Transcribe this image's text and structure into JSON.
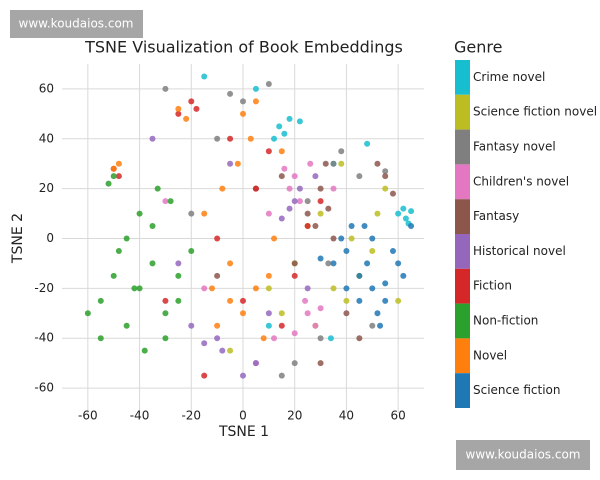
{
  "chart_data": {
    "type": "scatter",
    "title": "TSNE Visualization of Book Embeddings",
    "x_label": "TSNE 1",
    "y_label": "TSNE 2",
    "legend_title": "Genre",
    "xlim": [
      -70,
      70
    ],
    "ylim": [
      -70,
      70
    ],
    "xticks": [
      -60,
      -40,
      -20,
      0,
      20,
      40,
      60
    ],
    "yticks": [
      -60,
      -40,
      -20,
      0,
      20,
      40,
      60
    ],
    "grid": true,
    "legend": "right",
    "series": [
      {
        "name": "Crime novel",
        "color": "#17becf",
        "x": [
          14,
          12,
          18,
          16,
          62,
          63,
          60,
          65,
          10,
          34,
          48,
          -15,
          22,
          35,
          5,
          64
        ],
        "values": [
          45,
          40,
          48,
          42,
          12,
          8,
          10,
          11,
          -35,
          -40,
          38,
          65,
          47,
          30,
          60,
          6
        ]
      },
      {
        "name": "Science fiction novel",
        "color": "#bcbd22",
        "x": [
          20,
          35,
          40,
          45,
          25,
          50,
          30,
          55,
          15,
          -5,
          10,
          38,
          60,
          28,
          42,
          52
        ],
        "values": [
          -10,
          -20,
          -25,
          -15,
          5,
          -5,
          10,
          20,
          -30,
          -45,
          -20,
          30,
          -25,
          -35,
          0,
          10
        ]
      },
      {
        "name": "Fantasy novel",
        "color": "#7f7f7f",
        "x": [
          35,
          38,
          0,
          -5,
          30,
          45,
          55,
          10,
          -30,
          20,
          33,
          -20,
          25,
          15,
          50,
          -10
        ],
        "values": [
          30,
          35,
          55,
          58,
          -40,
          25,
          27,
          62,
          60,
          -50,
          -10,
          10,
          15,
          -55,
          -35,
          40
        ]
      },
      {
        "name": "Children's novel",
        "color": "#e377c2",
        "x": [
          18,
          20,
          22,
          25,
          28,
          24,
          16,
          30,
          10,
          -15,
          5,
          26,
          20,
          35,
          12,
          -30
        ],
        "values": [
          20,
          25,
          15,
          -30,
          -35,
          -25,
          28,
          -28,
          10,
          -20,
          -50,
          30,
          -38,
          20,
          -40,
          15
        ]
      },
      {
        "name": "Fantasy",
        "color": "#8c564b",
        "x": [
          28,
          30,
          32,
          25,
          35,
          55,
          52,
          58,
          20,
          40,
          -10,
          5,
          45,
          15,
          33,
          30
        ],
        "values": [
          5,
          20,
          30,
          10,
          0,
          25,
          30,
          18,
          -10,
          -30,
          -15,
          20,
          -40,
          25,
          12,
          -50
        ]
      },
      {
        "name": "Historical novel",
        "color": "#9467bd",
        "x": [
          20,
          18,
          22,
          -10,
          -8,
          -15,
          15,
          25,
          5,
          -20,
          10,
          -5,
          28,
          -25,
          0,
          -35
        ],
        "values": [
          15,
          12,
          20,
          -40,
          -45,
          -42,
          8,
          -20,
          -50,
          -35,
          -30,
          30,
          25,
          -10,
          -55,
          40
        ]
      },
      {
        "name": "Fiction",
        "color": "#d62728",
        "x": [
          -20,
          -18,
          -25,
          -50,
          -48,
          0,
          5,
          -10,
          10,
          20,
          -5,
          15,
          -15,
          25,
          -30,
          30
        ],
        "values": [
          55,
          52,
          50,
          28,
          25,
          -25,
          20,
          0,
          35,
          -15,
          40,
          -35,
          -55,
          5,
          -25,
          15
        ]
      },
      {
        "name": "Non-fiction",
        "color": "#2ca02c",
        "x": [
          -55,
          -50,
          -45,
          -40,
          -35,
          -30,
          -25,
          -20,
          -45,
          -40,
          -35,
          -30,
          -25,
          -50,
          -55,
          -60,
          -38,
          -28,
          -42,
          -52,
          -48,
          -33
        ],
        "values": [
          -25,
          -15,
          -35,
          -20,
          -10,
          -30,
          -15,
          -5,
          0,
          10,
          5,
          -40,
          -25,
          25,
          -40,
          -30,
          -45,
          15,
          -20,
          22,
          -5,
          20
        ]
      },
      {
        "name": "Novel",
        "color": "#ff7f0e",
        "x": [
          -5,
          0,
          5,
          -10,
          10,
          -2,
          3,
          -8,
          -15,
          0,
          5,
          -50,
          -48,
          -25,
          -22,
          8,
          12,
          -5,
          15,
          -12
        ],
        "values": [
          -25,
          -30,
          -20,
          -35,
          -15,
          30,
          40,
          20,
          10,
          50,
          55,
          28,
          30,
          52,
          48,
          -40,
          0,
          -10,
          35,
          -20
        ]
      },
      {
        "name": "Science fiction",
        "color": "#1f77b4",
        "x": [
          35,
          40,
          45,
          50,
          55,
          60,
          38,
          42,
          48,
          52,
          58,
          62,
          45,
          50,
          55,
          40,
          30,
          65,
          47,
          53
        ],
        "values": [
          -10,
          -5,
          -15,
          -20,
          -25,
          -10,
          0,
          5,
          -10,
          -30,
          -5,
          -15,
          -25,
          0,
          -18,
          -20,
          -8,
          5,
          5,
          -35
        ]
      }
    ]
  },
  "watermarks": [
    "www.koudaios.com",
    "www.koudaios.com"
  ]
}
